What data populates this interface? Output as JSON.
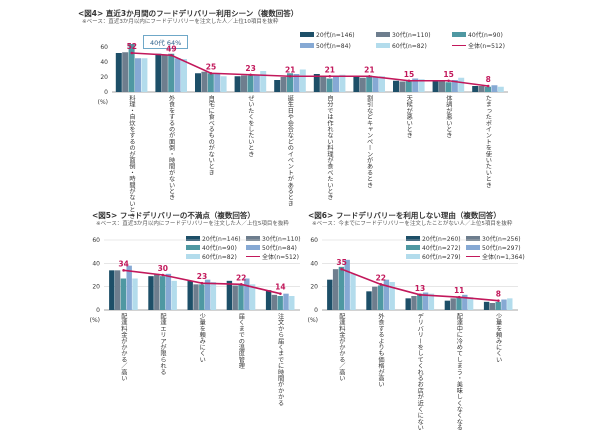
{
  "colors": {
    "c20": "#1d4f68",
    "c30": "#6e7e8e",
    "c40": "#4f98a2",
    "c50": "#86a9d4",
    "c60": "#b3dcec",
    "total": "#c2185b",
    "grid": "#d6d6d6",
    "axis": "#888888",
    "label_total": "#c2185b"
  },
  "chart_data": [
    {
      "type": "bar",
      "title": "<図4> 直近3か月間のフードデリバリー利用シーン（複数回答）",
      "note": "※ベース：直近3か月以内にフードデリバリーを注文した人／上位10項目を抜粋",
      "unit": "(%)",
      "ylim": [
        0,
        60
      ],
      "yticks": [
        0,
        20,
        40,
        60
      ],
      "grid": false,
      "callout": "40代 64%",
      "series_order": [
        "20代(n=146)",
        "30代(n=110)",
        "40代(n=90)",
        "50代(n=84)",
        "60代(n=82)"
      ],
      "total_name": "全体(n=512)",
      "categories": [
        "料理・自炊をするのが面倒・時間がないとき",
        "外食をするのが面倒・時間がないとき",
        "自宅に食べるものがないとき",
        "ぜいたくをしたいとき",
        "誕生日や会合などのイベントがあるとき",
        "自分では作れない料理が食べたいとき",
        "割引などキャンペーンがあるとき",
        "天候が悪いとき",
        "体調が悪いとき",
        "たまったポイントを使いたいとき"
      ],
      "series": [
        {
          "name": "20代(n=146)",
          "values": [
            52,
            51,
            25,
            21,
            16,
            24,
            20,
            15,
            14,
            8
          ]
        },
        {
          "name": "30代(n=110)",
          "values": [
            53,
            50,
            27,
            22,
            20,
            20,
            19,
            14,
            14,
            8
          ]
        },
        {
          "name": "40代(n=90)",
          "values": [
            64,
            51,
            25,
            22,
            25,
            18,
            22,
            15,
            13,
            7
          ]
        },
        {
          "name": "50代(n=84)",
          "values": [
            45,
            45,
            24,
            23,
            24,
            20,
            20,
            18,
            16,
            9
          ]
        },
        {
          "name": "60代(n=82)",
          "values": [
            45,
            44,
            21,
            28,
            30,
            23,
            21,
            17,
            19,
            7
          ]
        }
      ],
      "total": [
        52,
        49,
        25,
        23,
        21,
        21,
        21,
        15,
        15,
        8
      ]
    },
    {
      "type": "bar",
      "title": "<図5> フードデリバリーの不満点（複数回答）",
      "note": "※ベース：直近3か月以内にフードデリバリーを注文した人／上位5項目を抜粋",
      "unit": "(%)",
      "ylim": [
        0,
        60
      ],
      "yticks": [
        0,
        20,
        40,
        60
      ],
      "grid": true,
      "series_order": [
        "20代(n=146)",
        "40代(n=90)",
        "60代(n=82)",
        "30代(n=110)",
        "50代(n=84)"
      ],
      "total_name": "全体(n=512)",
      "categories": [
        "配達料金がかかる／高い",
        "配達エリアが限られる",
        "少量を頼みにくい",
        "届くまでの温度管理",
        "注文から届くまでに時間がかかる"
      ],
      "series": [
        {
          "name": "20代(n=146)",
          "values": [
            34,
            29,
            25,
            25,
            17
          ]
        },
        {
          "name": "30代(n=110)",
          "values": [
            34,
            31,
            22,
            21,
            13
          ]
        },
        {
          "name": "40代(n=90)",
          "values": [
            27,
            29,
            22,
            22,
            12
          ]
        },
        {
          "name": "50代(n=84)",
          "values": [
            38,
            31,
            26,
            27,
            14
          ]
        },
        {
          "name": "60代(n=82)",
          "values": [
            27,
            25,
            24,
            22,
            12
          ]
        }
      ],
      "total": [
        34,
        30,
        23,
        22,
        14
      ]
    },
    {
      "type": "bar",
      "title": "<図6> フードデリバリーを利用しない理由（複数回答）",
      "note": "※ベース：今までにフードデリバリーを注文したことがない人／上位5項目を抜粋",
      "unit": "(%)",
      "ylim": [
        0,
        60
      ],
      "yticks": [
        0,
        20,
        40,
        60
      ],
      "grid": true,
      "series_order": [
        "20代(n=260)",
        "40代(n=272)",
        "60代(n=279)",
        "30代(n=256)",
        "50代(n=297)"
      ],
      "total_name": "全体(n=1,364)",
      "categories": [
        "配達料金がかかる／高い",
        "外食するよりも価格が高い",
        "デリバリーをしてくれるお店が近くにない",
        "配達中に冷めてしまう・美味しくなくなる",
        "少量を頼みにくい"
      ],
      "series": [
        {
          "name": "20代(n=260)",
          "values": [
            26,
            16,
            10,
            8,
            7
          ]
        },
        {
          "name": "30代(n=256)",
          "values": [
            35,
            20,
            12,
            10,
            6
          ]
        },
        {
          "name": "40代(n=272)",
          "values": [
            37,
            21,
            14,
            11,
            7
          ]
        },
        {
          "name": "50代(n=297)",
          "values": [
            43,
            26,
            15,
            13,
            9
          ]
        },
        {
          "name": "60代(n=279)",
          "values": [
            31,
            24,
            14,
            11,
            10
          ]
        }
      ],
      "total": [
        35,
        22,
        13,
        11,
        8
      ]
    }
  ]
}
